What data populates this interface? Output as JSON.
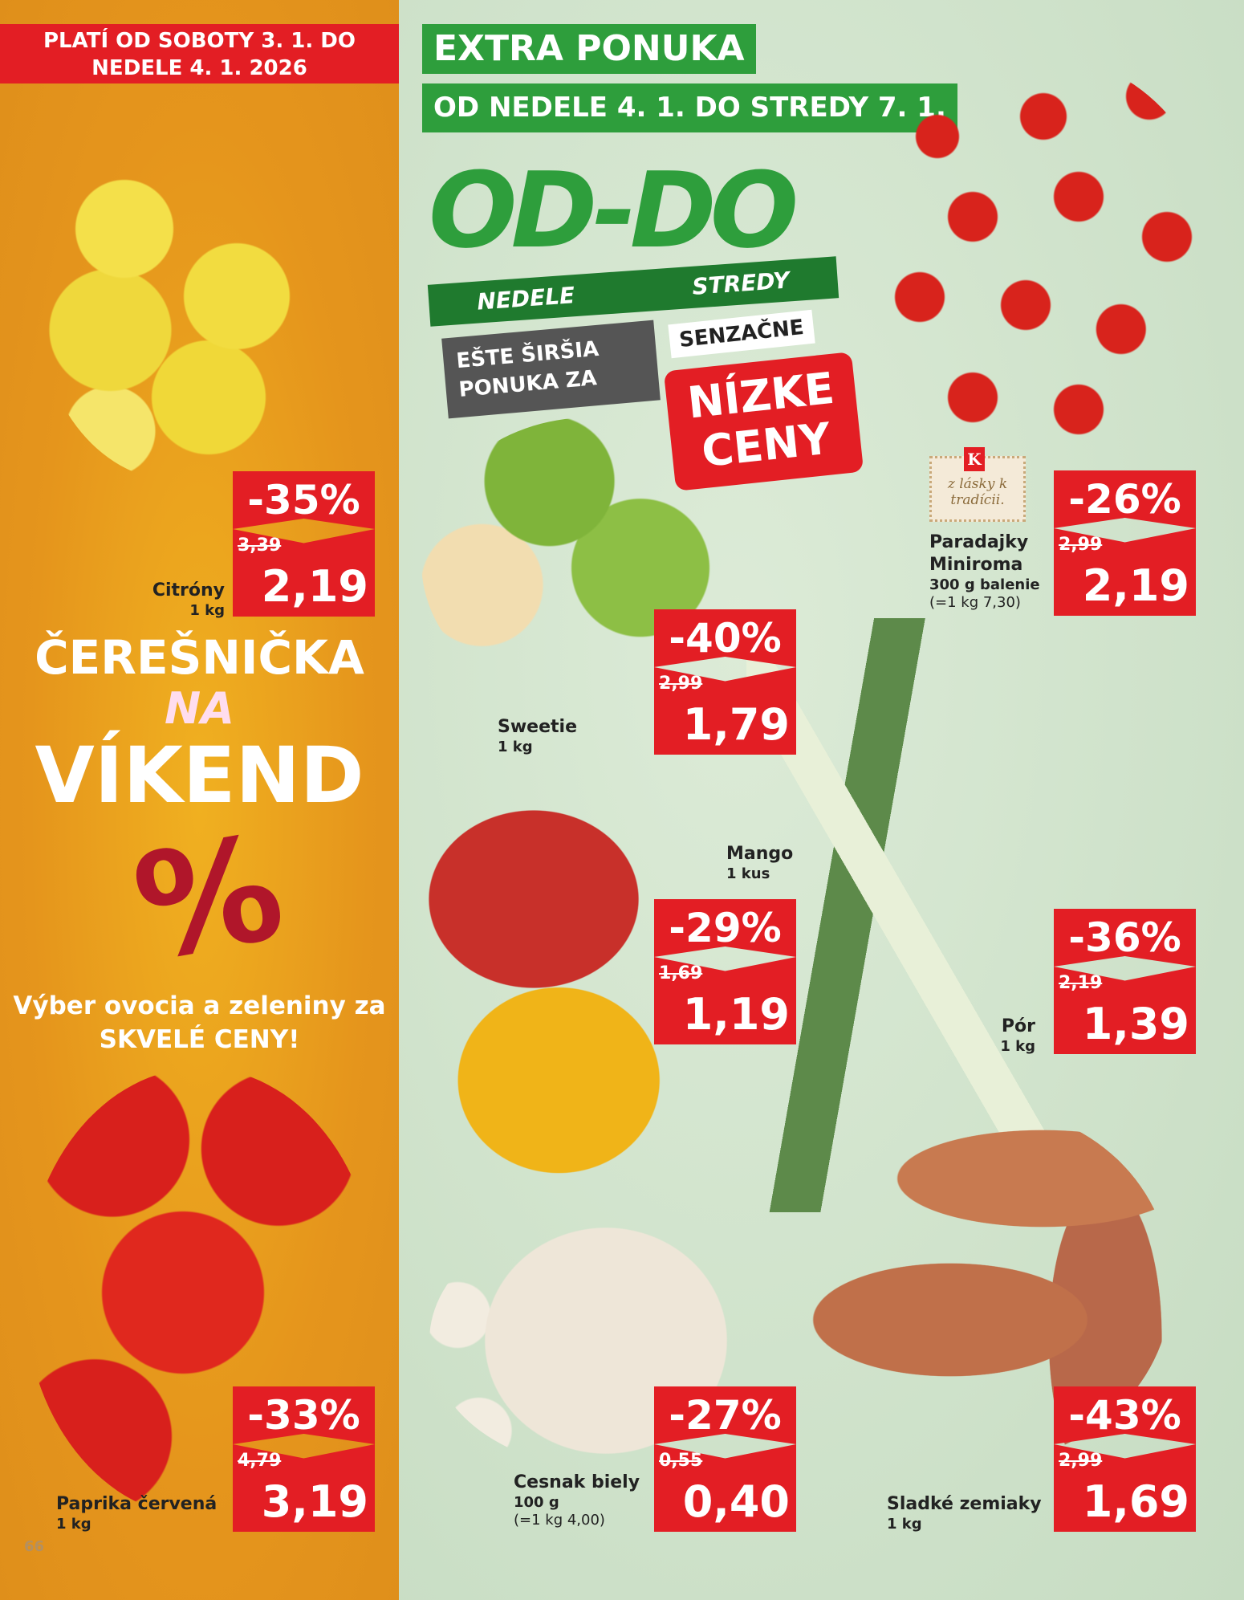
{
  "header": {
    "validity": "PLATÍ OD SOBOTY 3. 1. DO NEDELE 4. 1. 2026",
    "extra": "EXTRA PONUKA",
    "extra_dates": "OD NEDELE 4. 1. DO STREDY 7. 1."
  },
  "promo": {
    "logo": "OD-DO",
    "from": "NEDELE",
    "to": "STREDY",
    "line1": "EŠTE ŠIRŠIA PONUKA ZA",
    "senz": "SENZAČNE",
    "nizke": "NÍZKE CENY"
  },
  "weekend": {
    "l1": "ČEREŠNIČKA",
    "l2": "NA",
    "l3": "VÍKEND",
    "sign": "%",
    "text": "Výber ovocia a zeleniny za SKVELÉ CENY!"
  },
  "stamp": {
    "logo": "K",
    "text": "z lásky k tradícii."
  },
  "products": [
    {
      "name": "Citróny",
      "unit": "1 kg",
      "discount": "-35%",
      "old": "3,39",
      "price": "2,19"
    },
    {
      "name": "Paradajky Miniroma",
      "unit": "300 g balenie",
      "unit_price": "(=1 kg 7,30)",
      "discount": "-26%",
      "old": "2,99",
      "price": "2,19"
    },
    {
      "name": "Sweetie",
      "unit": "1 kg",
      "discount": "-40%",
      "old": "2,99",
      "price": "1,79"
    },
    {
      "name": "Mango",
      "unit": "1 kus",
      "discount": "-29%",
      "old": "1,69",
      "price": "1,19"
    },
    {
      "name": "Pór",
      "unit": "1 kg",
      "discount": "-36%",
      "old": "2,19",
      "price": "1,39"
    },
    {
      "name": "Paprika červená",
      "unit": "1 kg",
      "discount": "-33%",
      "old": "4,79",
      "price": "3,19"
    },
    {
      "name": "Cesnak biely",
      "unit": "100 g",
      "unit_price": "(=1 kg 4,00)",
      "discount": "-27%",
      "old": "0,55",
      "price": "0,40"
    },
    {
      "name": "Sladké zemiaky",
      "unit": "1 kg",
      "discount": "-43%",
      "old": "2,99",
      "price": "1,69"
    }
  ],
  "page_number": "66",
  "colors": {
    "red": "#e31e24",
    "green": "#2e9e3c",
    "orange": "#e5951c"
  }
}
